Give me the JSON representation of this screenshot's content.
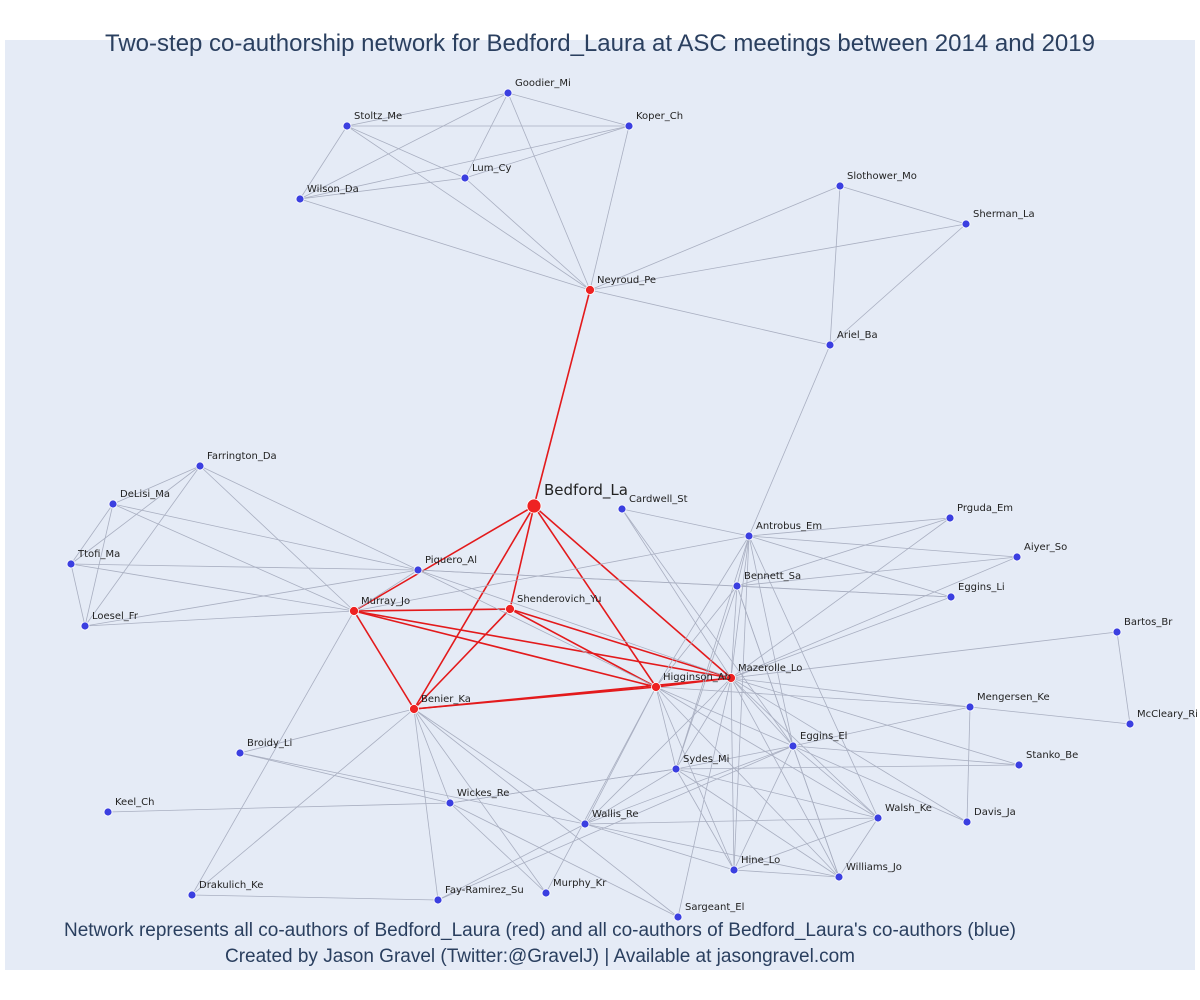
{
  "title": "Two-step co-authorship network for Bedford_Laura at ASC meetings between 2014 and 2019",
  "footer": {
    "line1": "Network represents all co-authors of Bedford_Laura (red) and all co-authors of Bedford_Laura's co-authors (blue)",
    "line2": "Created by Jason Gravel (Twitter:@GravelJ) | Available at jasongravel.com"
  },
  "colors": {
    "background": "#e5ebf6",
    "red_node": "#ee2222",
    "blue_node": "#3b3fe0",
    "red_edge": "#e31a1c",
    "blue_edge": "#a9afc1",
    "text": "#2a3f5f"
  },
  "network": {
    "focal": "Bedford_La",
    "nodes": [
      {
        "id": "Bedford_La",
        "group": "focal"
      },
      {
        "id": "Neyroud_Pe",
        "group": "red"
      },
      {
        "id": "Murray_Jo",
        "group": "red"
      },
      {
        "id": "Shenderovich_Yu",
        "group": "red"
      },
      {
        "id": "Higginson_Ab",
        "group": "red"
      },
      {
        "id": "Mazerolle_Lo",
        "group": "red"
      },
      {
        "id": "Benier_Ka",
        "group": "red"
      },
      {
        "id": "Goodier_Mi",
        "group": "blue"
      },
      {
        "id": "Stoltz_Me",
        "group": "blue"
      },
      {
        "id": "Koper_Ch",
        "group": "blue"
      },
      {
        "id": "Lum_Cy",
        "group": "blue"
      },
      {
        "id": "Wilson_Da",
        "group": "blue"
      },
      {
        "id": "Slothower_Mo",
        "group": "blue"
      },
      {
        "id": "Sherman_La",
        "group": "blue"
      },
      {
        "id": "Ariel_Ba",
        "group": "blue"
      },
      {
        "id": "Farrington_Da",
        "group": "blue"
      },
      {
        "id": "DeLisi_Ma",
        "group": "blue"
      },
      {
        "id": "Ttofi_Ma",
        "group": "blue"
      },
      {
        "id": "Loesel_Fr",
        "group": "blue"
      },
      {
        "id": "Piquero_Al",
        "group": "blue"
      },
      {
        "id": "Cardwell_St",
        "group": "blue"
      },
      {
        "id": "Antrobus_Em",
        "group": "blue"
      },
      {
        "id": "Prguda_Em",
        "group": "blue"
      },
      {
        "id": "Aiyer_So",
        "group": "blue"
      },
      {
        "id": "Bennett_Sa",
        "group": "blue"
      },
      {
        "id": "Eggins_Li",
        "group": "blue"
      },
      {
        "id": "Bartos_Br",
        "group": "blue"
      },
      {
        "id": "McCleary_Ri",
        "group": "blue"
      },
      {
        "id": "Mengersen_Ke",
        "group": "blue"
      },
      {
        "id": "Stanko_Be",
        "group": "blue"
      },
      {
        "id": "Eggins_El",
        "group": "blue"
      },
      {
        "id": "Davis_Ja",
        "group": "blue"
      },
      {
        "id": "Sydes_Mi",
        "group": "blue"
      },
      {
        "id": "Walsh_Ke",
        "group": "blue"
      },
      {
        "id": "Wallis_Re",
        "group": "blue"
      },
      {
        "id": "Hine_Lo",
        "group": "blue"
      },
      {
        "id": "Williams_Jo",
        "group": "blue"
      },
      {
        "id": "Broidy_Li",
        "group": "blue"
      },
      {
        "id": "Wickes_Re",
        "group": "blue"
      },
      {
        "id": "Keel_Ch",
        "group": "blue"
      },
      {
        "id": "Drakulich_Ke",
        "group": "blue"
      },
      {
        "id": "Fay-Ramirez_Su",
        "group": "blue"
      },
      {
        "id": "Murphy_Kr",
        "group": "blue"
      },
      {
        "id": "Sargeant_El",
        "group": "blue"
      }
    ],
    "edges": [
      [
        "Bedford_La",
        "Neyroud_Pe"
      ],
      [
        "Bedford_La",
        "Murray_Jo"
      ],
      [
        "Bedford_La",
        "Shenderovich_Yu"
      ],
      [
        "Bedford_La",
        "Higginson_Ab"
      ],
      [
        "Bedford_La",
        "Mazerolle_Lo"
      ],
      [
        "Bedford_La",
        "Benier_Ka"
      ],
      [
        "Murray_Jo",
        "Shenderovich_Yu"
      ],
      [
        "Murray_Jo",
        "Higginson_Ab"
      ],
      [
        "Murray_Jo",
        "Mazerolle_Lo"
      ],
      [
        "Murray_Jo",
        "Benier_Ka"
      ],
      [
        "Shenderovich_Yu",
        "Higginson_Ab"
      ],
      [
        "Shenderovich_Yu",
        "Mazerolle_Lo"
      ],
      [
        "Shenderovich_Yu",
        "Benier_Ka"
      ],
      [
        "Higginson_Ab",
        "Mazerolle_Lo"
      ],
      [
        "Higginson_Ab",
        "Benier_Ka"
      ],
      [
        "Mazerolle_Lo",
        "Benier_Ka"
      ],
      [
        "Neyroud_Pe",
        "Goodier_Mi"
      ],
      [
        "Neyroud_Pe",
        "Stoltz_Me"
      ],
      [
        "Neyroud_Pe",
        "Koper_Ch"
      ],
      [
        "Neyroud_Pe",
        "Lum_Cy"
      ],
      [
        "Neyroud_Pe",
        "Wilson_Da"
      ],
      [
        "Neyroud_Pe",
        "Slothower_Mo"
      ],
      [
        "Neyroud_Pe",
        "Sherman_La"
      ],
      [
        "Neyroud_Pe",
        "Ariel_Ba"
      ],
      [
        "Goodier_Mi",
        "Stoltz_Me"
      ],
      [
        "Goodier_Mi",
        "Koper_Ch"
      ],
      [
        "Goodier_Mi",
        "Lum_Cy"
      ],
      [
        "Goodier_Mi",
        "Wilson_Da"
      ],
      [
        "Stoltz_Me",
        "Koper_Ch"
      ],
      [
        "Stoltz_Me",
        "Lum_Cy"
      ],
      [
        "Stoltz_Me",
        "Wilson_Da"
      ],
      [
        "Koper_Ch",
        "Lum_Cy"
      ],
      [
        "Koper_Ch",
        "Wilson_Da"
      ],
      [
        "Lum_Cy",
        "Wilson_Da"
      ],
      [
        "Slothower_Mo",
        "Sherman_La"
      ],
      [
        "Slothower_Mo",
        "Ariel_Ba"
      ],
      [
        "Sherman_La",
        "Ariel_Ba"
      ],
      [
        "Ariel_Ba",
        "Antrobus_Em"
      ],
      [
        "Murray_Jo",
        "Farrington_Da"
      ],
      [
        "Murray_Jo",
        "DeLisi_Ma"
      ],
      [
        "Murray_Jo",
        "Ttofi_Ma"
      ],
      [
        "Murray_Jo",
        "Loesel_Fr"
      ],
      [
        "Murray_Jo",
        "Piquero_Al"
      ],
      [
        "Murray_Jo",
        "Antrobus_Em"
      ],
      [
        "Murray_Jo",
        "Drakulich_Ke"
      ],
      [
        "Farrington_Da",
        "DeLisi_Ma"
      ],
      [
        "Farrington_Da",
        "Ttofi_Ma"
      ],
      [
        "Farrington_Da",
        "Loesel_Fr"
      ],
      [
        "Farrington_Da",
        "Piquero_Al"
      ],
      [
        "DeLisi_Ma",
        "Ttofi_Ma"
      ],
      [
        "DeLisi_Ma",
        "Loesel_Fr"
      ],
      [
        "DeLisi_Ma",
        "Piquero_Al"
      ],
      [
        "Ttofi_Ma",
        "Loesel_Fr"
      ],
      [
        "Ttofi_Ma",
        "Piquero_Al"
      ],
      [
        "Loesel_Fr",
        "Piquero_Al"
      ],
      [
        "Piquero_Al",
        "Bennett_Sa"
      ],
      [
        "Piquero_Al",
        "Eggins_Li"
      ],
      [
        "Piquero_Al",
        "Higginson_Ab"
      ],
      [
        "Piquero_Al",
        "Mazerolle_Lo"
      ],
      [
        "Cardwell_St",
        "Antrobus_Em"
      ],
      [
        "Cardwell_St",
        "Mazerolle_Lo"
      ],
      [
        "Cardwell_St",
        "Eggins_El"
      ],
      [
        "Antrobus_Em",
        "Prguda_Em"
      ],
      [
        "Antrobus_Em",
        "Aiyer_So"
      ],
      [
        "Antrobus_Em",
        "Bennett_Sa"
      ],
      [
        "Antrobus_Em",
        "Eggins_Li"
      ],
      [
        "Antrobus_Em",
        "Higginson_Ab"
      ],
      [
        "Antrobus_Em",
        "Mazerolle_Lo"
      ],
      [
        "Antrobus_Em",
        "Eggins_El"
      ],
      [
        "Antrobus_Em",
        "Sydes_Mi"
      ],
      [
        "Antrobus_Em",
        "Hine_Lo"
      ],
      [
        "Antrobus_Em",
        "Walsh_Ke"
      ],
      [
        "Bennett_Sa",
        "Prguda_Em"
      ],
      [
        "Bennett_Sa",
        "Aiyer_So"
      ],
      [
        "Bennett_Sa",
        "Eggins_Li"
      ],
      [
        "Bennett_Sa",
        "Mazerolle_Lo"
      ],
      [
        "Bennett_Sa",
        "Higginson_Ab"
      ],
      [
        "Bennett_Sa",
        "Eggins_El"
      ],
      [
        "Bennett_Sa",
        "Sydes_Mi"
      ],
      [
        "Bennett_Sa",
        "Williams_Jo"
      ],
      [
        "Mazerolle_Lo",
        "Prguda_Em"
      ],
      [
        "Mazerolle_Lo",
        "Aiyer_So"
      ],
      [
        "Mazerolle_Lo",
        "Eggins_Li"
      ],
      [
        "Mazerolle_Lo",
        "Bartos_Br"
      ],
      [
        "Mazerolle_Lo",
        "Mengersen_Ke"
      ],
      [
        "Mazerolle_Lo",
        "Stanko_Be"
      ],
      [
        "Mazerolle_Lo",
        "Davis_Ja"
      ],
      [
        "Mazerolle_Lo",
        "Eggins_El"
      ],
      [
        "Mazerolle_Lo",
        "Sydes_Mi"
      ],
      [
        "Mazerolle_Lo",
        "Walsh_Ke"
      ],
      [
        "Mazerolle_Lo",
        "Wallis_Re"
      ],
      [
        "Mazerolle_Lo",
        "Hine_Lo"
      ],
      [
        "Mazerolle_Lo",
        "Williams_Jo"
      ],
      [
        "Mazerolle_Lo",
        "Sargeant_El"
      ],
      [
        "Higginson_Ab",
        "Eggins_El"
      ],
      [
        "Higginson_Ab",
        "Sydes_Mi"
      ],
      [
        "Higginson_Ab",
        "Walsh_Ke"
      ],
      [
        "Higginson_Ab",
        "Wallis_Re"
      ],
      [
        "Higginson_Ab",
        "Hine_Lo"
      ],
      [
        "Higginson_Ab",
        "Williams_Jo"
      ],
      [
        "Higginson_Ab",
        "Mengersen_Ke"
      ],
      [
        "Higginson_Ab",
        "Murphy_Kr"
      ],
      [
        "Bartos_Br",
        "McCleary_Ri"
      ],
      [
        "Mengersen_Ke",
        "McCleary_Ri"
      ],
      [
        "Mengersen_Ke",
        "Davis_Ja"
      ],
      [
        "Mengersen_Ke",
        "Eggins_El"
      ],
      [
        "Eggins_El",
        "Stanko_Be"
      ],
      [
        "Eggins_El",
        "Davis_Ja"
      ],
      [
        "Eggins_El",
        "Sydes_Mi"
      ],
      [
        "Eggins_El",
        "Walsh_Ke"
      ],
      [
        "Eggins_El",
        "Wallis_Re"
      ],
      [
        "Eggins_El",
        "Hine_Lo"
      ],
      [
        "Eggins_El",
        "Williams_Jo"
      ],
      [
        "Eggins_El",
        "Fay-Ramirez_Su"
      ],
      [
        "Sydes_Mi",
        "Stanko_Be"
      ],
      [
        "Sydes_Mi",
        "Walsh_Ke"
      ],
      [
        "Sydes_Mi",
        "Wallis_Re"
      ],
      [
        "Sydes_Mi",
        "Hine_Lo"
      ],
      [
        "Sydes_Mi",
        "Williams_Jo"
      ],
      [
        "Sydes_Mi",
        "Wickes_Re"
      ],
      [
        "Wallis_Re",
        "Walsh_Ke"
      ],
      [
        "Wallis_Re",
        "Hine_Lo"
      ],
      [
        "Wallis_Re",
        "Williams_Jo"
      ],
      [
        "Wallis_Re",
        "Fay-Ramirez_Su"
      ],
      [
        "Hine_Lo",
        "Walsh_Ke"
      ],
      [
        "Hine_Lo",
        "Williams_Jo"
      ],
      [
        "Walsh_Ke",
        "Williams_Jo"
      ],
      [
        "Benier_Ka",
        "Broidy_Li"
      ],
      [
        "Benier_Ka",
        "Wickes_Re"
      ],
      [
        "Benier_Ka",
        "Drakulich_Ke"
      ],
      [
        "Benier_Ka",
        "Fay-Ramirez_Su"
      ],
      [
        "Benier_Ka",
        "Murphy_Kr"
      ],
      [
        "Benier_Ka",
        "Wallis_Re"
      ],
      [
        "Benier_Ka",
        "Sargeant_El"
      ],
      [
        "Broidy_Li",
        "Wickes_Re"
      ],
      [
        "Broidy_Li",
        "Wallis_Re"
      ],
      [
        "Wickes_Re",
        "Keel_Ch"
      ],
      [
        "Wickes_Re",
        "Sydes_Mi"
      ],
      [
        "Wickes_Re",
        "Murphy_Kr"
      ],
      [
        "Wickes_Re",
        "Sargeant_El"
      ],
      [
        "Drakulich_Ke",
        "Fay-Ramirez_Su"
      ]
    ]
  }
}
